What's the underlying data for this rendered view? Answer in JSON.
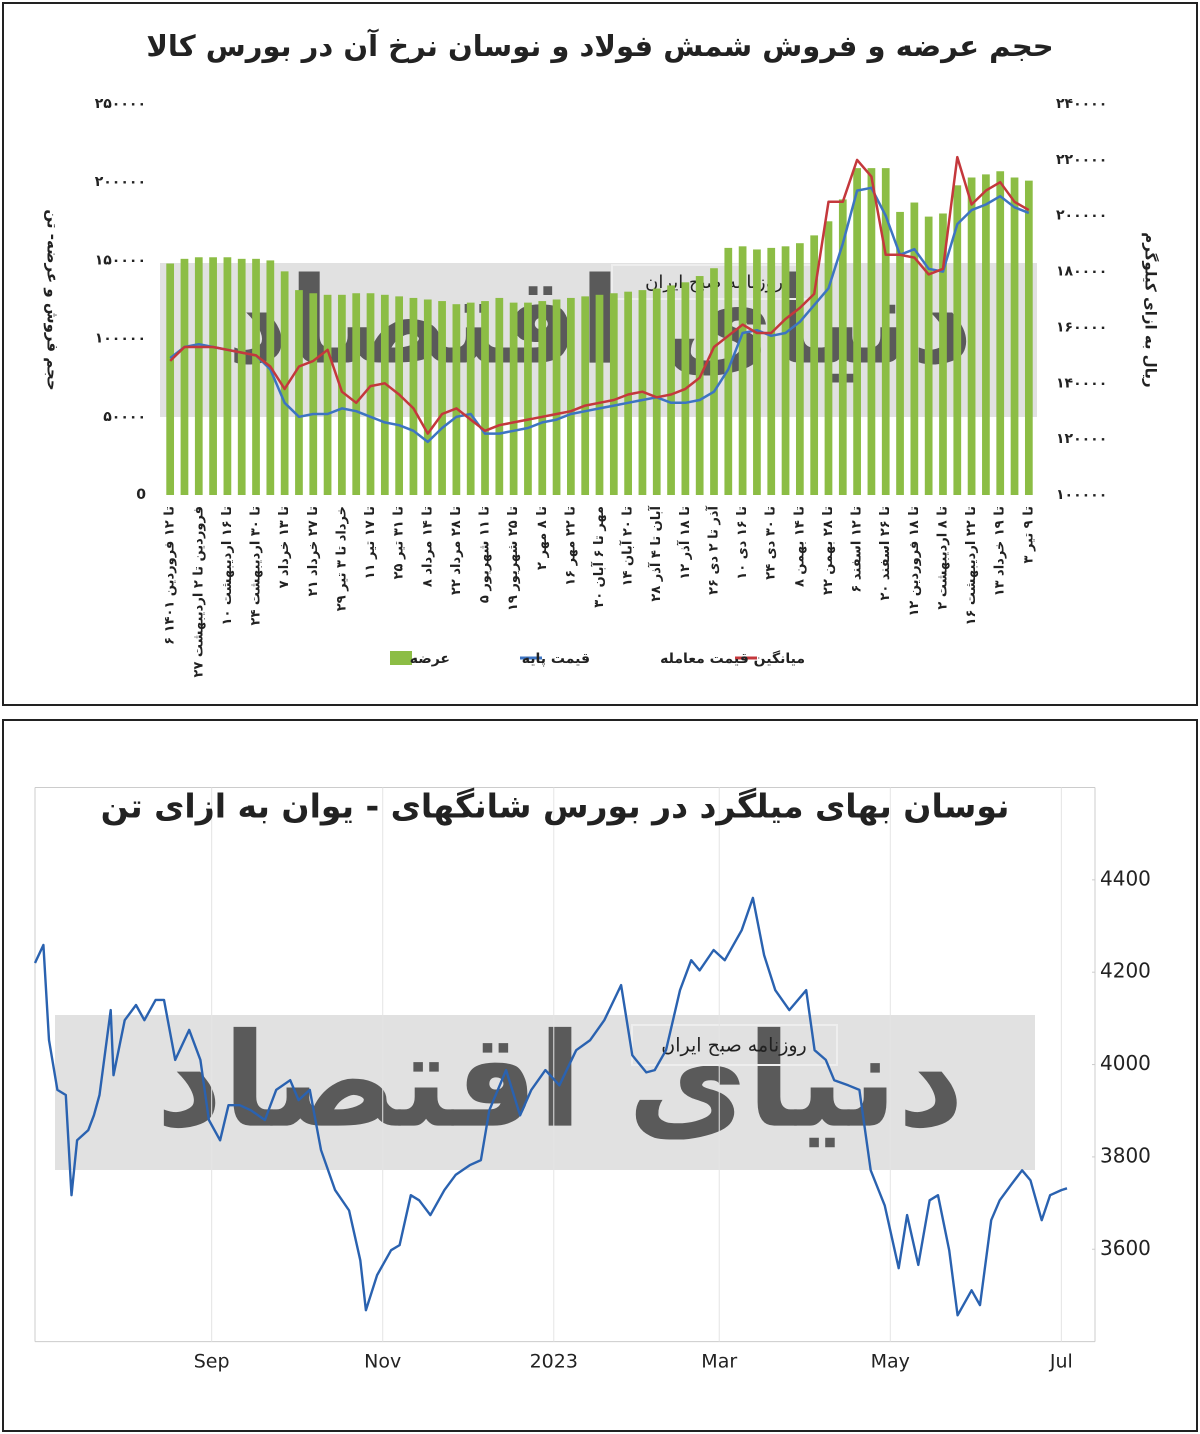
{
  "watermark": {
    "brand": "دنیای اقتصاد",
    "caption": "روزنامه صبح ایران"
  },
  "chart_data": [
    {
      "type": "combo",
      "title": "حجم عرضه و فروش شمش فولاد و نوسان نرخ آن در بورس کالا",
      "y_label": "حجم فروش و عرضه- تن",
      "y2_label": "ریال به ازای کیلوگرم",
      "legend": "bottom",
      "grid": false,
      "categories": [
        "۶ تا ۱۲ فروردین ۱۴۰۱",
        null,
        "۲۷ فروردین تا ۲ اردیبهشت",
        null,
        "۱۰ تا ۱۶ اردیبهشت",
        null,
        "۲۴ تا ۳۰ اردیبهشت",
        null,
        "۷ تا ۱۳ خرداد",
        null,
        "۲۱ تا ۲۷ خرداد",
        null,
        "۲۹ خرداد تا ۳ تیر",
        null,
        "۱۱ تا ۱۷ تیر",
        null,
        "۲۵ تا ۳۱ تیر",
        null,
        "۸ تا ۱۴ مرداد",
        null,
        "۲۲ تا ۲۸ مرداد",
        null,
        "۵ تا ۱۱ شهریور",
        null,
        "۱۹ تا ۲۵ شهریور",
        null,
        "۲ تا ۸ مهر",
        null,
        "۱۶ تا ۲۲ مهر",
        null,
        "۳۰ مهر تا ۶ آبان",
        null,
        "۱۴ تا ۲۰ آبان",
        null,
        "۲۸ آبان تا ۴ آذر",
        null,
        "۱۲ تا ۱۸ آذر",
        null,
        "۲۶ آذر تا ۲ دی",
        null,
        "۱۰ تا ۱۶ دی",
        null,
        "۲۴ تا ۳۰ دی",
        null,
        "۸ تا ۱۴ بهمن",
        null,
        "۲۲ تا ۲۸ بهمن",
        null,
        "۶ تا ۱۲ اسفند",
        null,
        "۲۰ تا ۲۶ اسفند",
        null,
        "۱۲ تا ۱۸ فروردین",
        null,
        "۲ تا ۸ اردیبهشت",
        null,
        "۱۶ تا ۲۲ اردیبهشت",
        null,
        "۱۳ تا ۱۹ خرداد",
        null,
        "۳ تا ۹ تیر"
      ],
      "series": [
        {
          "name": "عرضه",
          "type": "bar",
          "axis": "y",
          "color": "#8cbd45",
          "values": [
            148000,
            151000,
            152000,
            152000,
            152000,
            151000,
            151000,
            150000,
            143000,
            131000,
            129000,
            128000,
            128000,
            129000,
            129000,
            128000,
            127000,
            126000,
            125000,
            124000,
            122000,
            123000,
            124000,
            126000,
            123000,
            123000,
            124000,
            125000,
            126000,
            127000,
            128000,
            129000,
            130000,
            131000,
            132000,
            134000,
            136000,
            140000,
            145000,
            158000,
            159000,
            157000,
            158000,
            159000,
            161000,
            166000,
            175000,
            189000,
            209000,
            209000,
            209000,
            181000,
            187000,
            178000,
            180000,
            198000,
            203000,
            205000,
            207000,
            203000,
            201000
          ]
        },
        {
          "name": "قیمت پایه",
          "type": "line",
          "axis": "y2",
          "color": "#3d74c2",
          "values": [
            149000,
            153000,
            154000,
            153000,
            152000,
            151000,
            150000,
            145000,
            133000,
            128000,
            129000,
            129000,
            131000,
            130000,
            128000,
            126000,
            125000,
            123000,
            119000,
            124000,
            128000,
            129000,
            122000,
            122000,
            123000,
            124000,
            126000,
            127000,
            129000,
            130000,
            131000,
            132000,
            133000,
            134000,
            135000,
            133000,
            133000,
            134000,
            137000,
            145000,
            158000,
            159000,
            157000,
            158000,
            162000,
            168000,
            174000,
            190000,
            209000,
            210000,
            200000,
            186000,
            188000,
            181000,
            180000,
            197000,
            202000,
            204000,
            207000,
            203000,
            201000
          ]
        },
        {
          "name": "میانگین قیمت معامله",
          "type": "line",
          "axis": "y2",
          "color": "#c4383c",
          "values": [
            148000,
            153000,
            153000,
            153000,
            152000,
            151000,
            150000,
            146000,
            138000,
            146000,
            148000,
            152000,
            137000,
            133000,
            139000,
            140000,
            136000,
            131000,
            122000,
            129000,
            131000,
            127000,
            123000,
            125000,
            126000,
            127000,
            128000,
            129000,
            130000,
            132000,
            133000,
            134000,
            136000,
            137000,
            135000,
            136000,
            138000,
            142000,
            153000,
            157000,
            161000,
            158000,
            158000,
            163000,
            167000,
            172000,
            205000,
            205000,
            220000,
            214000,
            186000,
            186000,
            185000,
            179000,
            181000,
            221000,
            204000,
            209000,
            212000,
            205000,
            202000
          ]
        }
      ],
      "ylim": [
        0,
        250000
      ],
      "yticks": [
        0,
        {
          "value": 50000,
          "label": "۵۰۰۰۰"
        },
        {
          "value": 100000,
          "label": "۱۰۰۰۰۰"
        },
        {
          "value": 150000,
          "label": "۱۵۰۰۰۰"
        },
        {
          "value": 200000,
          "label": "۲۰۰۰۰۰"
        },
        {
          "value": 250000,
          "label": "۲۵۰۰۰۰"
        }
      ],
      "y2lim": [
        100000,
        240000
      ],
      "y2ticks": [
        {
          "value": 100000,
          "label": "۱۰۰۰۰۰"
        },
        {
          "value": 120000,
          "label": "۱۲۰۰۰۰"
        },
        {
          "value": 140000,
          "label": "۱۴۰۰۰۰"
        },
        {
          "value": 160000,
          "label": "۱۶۰۰۰۰"
        },
        {
          "value": 180000,
          "label": "۱۸۰۰۰۰"
        },
        {
          "value": 200000,
          "label": "۲۰۰۰۰۰"
        },
        {
          "value": 220000,
          "label": "۲۲۰۰۰۰"
        },
        {
          "value": 240000,
          "label": "۲۴۰۰۰۰"
        }
      ]
    },
    {
      "type": "line",
      "title": "نوسان بهای میلگرد در بورس شانگهای - یوان به ازای تن",
      "grid": "x",
      "color": "#2a62b0",
      "x": [
        -185,
        -182,
        -180,
        -177,
        -174,
        -172,
        -170,
        -166,
        -164,
        -162,
        -158,
        -157,
        -153,
        -149,
        -146,
        -142,
        -139,
        -135,
        -130,
        -126,
        -123,
        -119,
        -116,
        -112,
        -108,
        -103,
        -99,
        -94,
        -91,
        -87,
        -83,
        -78,
        -73,
        -69,
        -67,
        -63,
        -58,
        -55,
        -51,
        -48,
        -44,
        -39,
        -35,
        -30,
        -26,
        -23,
        -17,
        -12,
        -8,
        -3,
        2,
        8,
        13,
        18,
        24,
        28,
        33,
        36,
        40,
        45,
        49,
        52,
        57,
        61,
        67,
        71,
        75,
        79,
        84,
        90,
        93,
        97,
        100,
        105,
        109,
        113,
        118,
        123,
        126,
        130,
        134,
        137,
        141,
        144,
        149,
        152,
        156,
        159,
        163,
        167,
        170,
        174,
        177,
        181,
        183
      ],
      "values": [
        4220,
        4259,
        4053,
        3945,
        3934,
        3717,
        3836,
        3858,
        3890,
        3934,
        4118,
        3977,
        4096,
        4129,
        4096,
        4140,
        4140,
        4010,
        4075,
        4010,
        3880,
        3836,
        3912,
        3912,
        3901,
        3880,
        3945,
        3966,
        3923,
        3945,
        3815,
        3728,
        3684,
        3576,
        3468,
        3544,
        3598,
        3609,
        3717,
        3706,
        3674,
        3728,
        3761,
        3782,
        3793,
        3901,
        3988,
        3890,
        3945,
        3988,
        3955,
        4031,
        4053,
        4096,
        4172,
        4020,
        3983,
        3988,
        4031,
        4161,
        4226,
        4204,
        4248,
        4226,
        4291,
        4361,
        4237,
        4161,
        4118,
        4161,
        4031,
        4010,
        3966,
        3955,
        3945,
        3771,
        3695,
        3559,
        3674,
        3566,
        3706,
        3717,
        3598,
        3457,
        3511,
        3479,
        3663,
        3706,
        3739,
        3771,
        3749,
        3663,
        3717,
        3728,
        3732
      ],
      "xlim": [
        -185,
        193
      ],
      "xticks": [
        {
          "value": -122,
          "label": "Sep"
        },
        {
          "value": -61,
          "label": "Nov"
        },
        {
          "value": 0,
          "label": "2023"
        },
        {
          "value": 59,
          "label": "Mar"
        },
        {
          "value": 120,
          "label": "May"
        },
        {
          "value": 181,
          "label": "Jul"
        }
      ],
      "ylim": [
        3400,
        4600
      ],
      "yticks": [
        3600,
        3800,
        4000,
        4200,
        4400
      ]
    }
  ]
}
